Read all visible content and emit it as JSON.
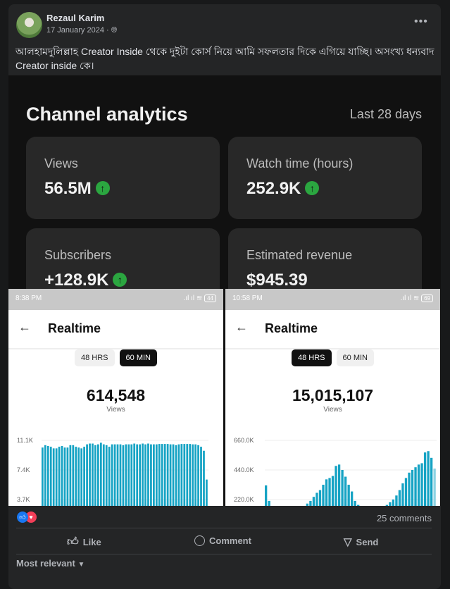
{
  "post": {
    "author": "Rezaul Karim",
    "date": "17 January 2024 · ",
    "privacy_icon": "globe-icon",
    "more": "•••",
    "text": "আলহামদুলিল্লাহ Creator Inside থেকে দুইটা কোর্স নিয়ে আমি সফলতার দিকে এগিয়ে যাচ্ছি। অসংখ্য ধন্যবাদ Creator inside কে।"
  },
  "analytics": {
    "title": "Channel analytics",
    "range": "Last 28 days",
    "tiles": [
      {
        "label": "Views",
        "value": "56.5M"
      },
      {
        "label": "Watch time (hours)",
        "value": "252.9K"
      },
      {
        "label": "Subscribers",
        "value": "+128.9K"
      },
      {
        "label": "Estimated revenue",
        "value": "$945.39"
      }
    ],
    "trend_color": "#2ba640"
  },
  "phones": [
    {
      "time": "8:38 PM",
      "battery": "44",
      "title": "Realtime",
      "pills": [
        "48 HRS",
        "60 MIN"
      ],
      "active": 1,
      "total": "614,548",
      "metric": "Views"
    },
    {
      "time": "10:58 PM",
      "battery": "69",
      "title": "Realtime",
      "pills": [
        "48 HRS",
        "60 MIN"
      ],
      "active": 0,
      "total": "15,015,107",
      "metric": "Views"
    }
  ],
  "chart_data": [
    {
      "type": "bar",
      "yticks": [
        "11.1K",
        "7.4K",
        "3.7K"
      ],
      "ytick_values": [
        11100,
        7400,
        3700
      ],
      "ylim": [
        0,
        11100
      ],
      "color": "#16a3c4",
      "values": [
        10200,
        10500,
        10400,
        10300,
        10100,
        10100,
        10300,
        10400,
        10200,
        10200,
        10500,
        10500,
        10300,
        10200,
        10100,
        10300,
        10600,
        10700,
        10700,
        10500,
        10600,
        10800,
        10600,
        10500,
        10300,
        10600,
        10600,
        10600,
        10600,
        10500,
        10600,
        10600,
        10600,
        10700,
        10600,
        10600,
        10700,
        10600,
        10700,
        10600,
        10600,
        10600,
        10650,
        10650,
        10650,
        10650,
        10600,
        10600,
        10500,
        10600,
        10650,
        10650,
        10650,
        10650,
        10600,
        10600,
        10500,
        10300,
        9800,
        6200
      ]
    },
    {
      "type": "bar",
      "yticks": [
        "660.0K",
        "440.0K",
        "220.0K"
      ],
      "ytick_values": [
        660000,
        440000,
        220000
      ],
      "ylim": [
        0,
        660000
      ],
      "color": "#16a3c4",
      "values": [
        325000,
        210000,
        170000,
        160000,
        150000,
        140000,
        130000,
        130000,
        130000,
        140000,
        150000,
        160000,
        170000,
        190000,
        210000,
        240000,
        270000,
        290000,
        330000,
        370000,
        380000,
        395000,
        470000,
        480000,
        440000,
        390000,
        330000,
        280000,
        210000,
        180000,
        160000,
        150000,
        140000,
        140000,
        140000,
        150000,
        160000,
        170000,
        180000,
        200000,
        220000,
        250000,
        290000,
        340000,
        380000,
        420000,
        440000,
        460000,
        480000,
        490000,
        570000,
        580000,
        530000,
        450000
      ]
    }
  ],
  "footer": {
    "comments": "25 comments",
    "like": "Like",
    "comment": "Comment",
    "send": "Send",
    "sort": "Most relevant"
  }
}
